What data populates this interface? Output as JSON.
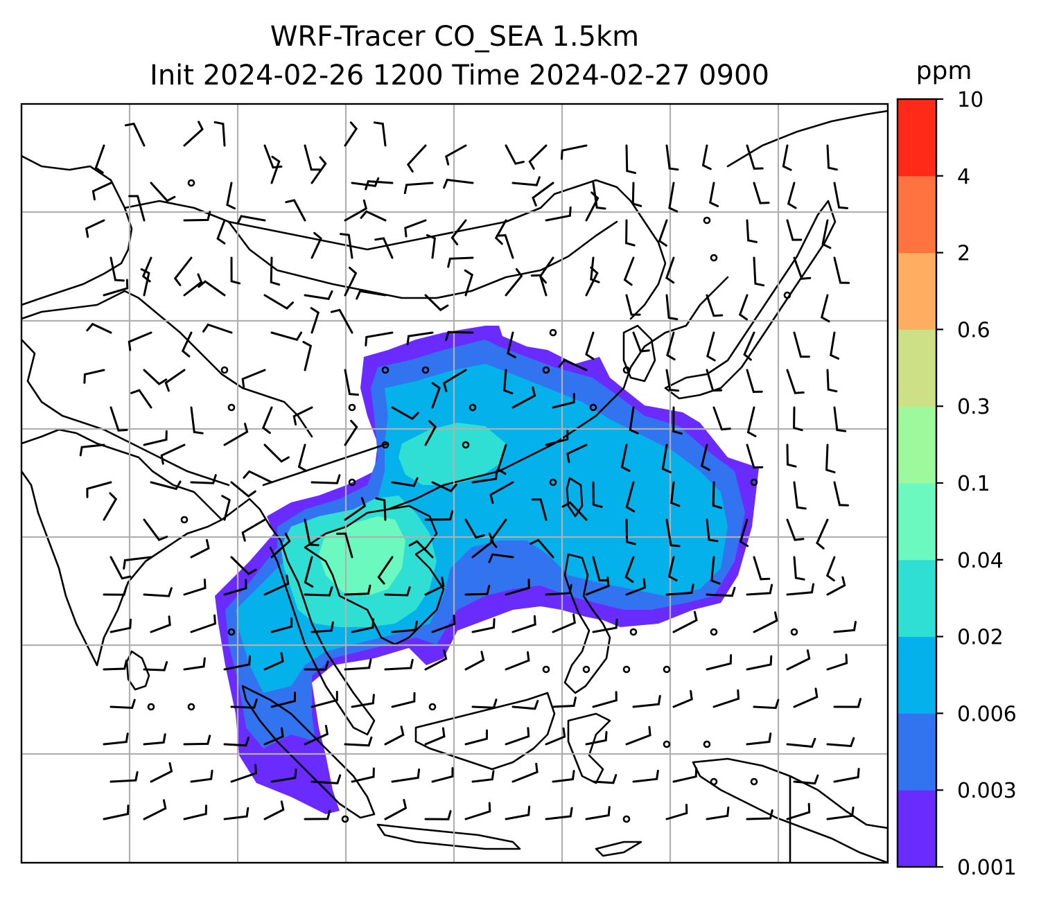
{
  "title": {
    "line1": "WRF-Tracer CO_SEA 1.5km",
    "line2": "Init 2024-02-26 1200 Time 2024-02-27 0900"
  },
  "colorbar": {
    "label": "ppm",
    "levels": [
      "0.001",
      "0.003",
      "0.006",
      "0.02",
      "0.04",
      "0.1",
      "0.3",
      "0.6",
      "2",
      "4",
      "10"
    ],
    "colors": [
      "#6a2bff",
      "#3273f0",
      "#05b1ea",
      "#2fdfd3",
      "#6cf9bf",
      "#9ef99c",
      "#cde085",
      "#ffae61",
      "#ff7340",
      "#ff2a18"
    ]
  },
  "map": {
    "gridlines": true,
    "features": [
      "coastlines",
      "country-borders",
      "wind-barbs",
      "calm-circles",
      "tracer-concentration-fill"
    ]
  }
}
